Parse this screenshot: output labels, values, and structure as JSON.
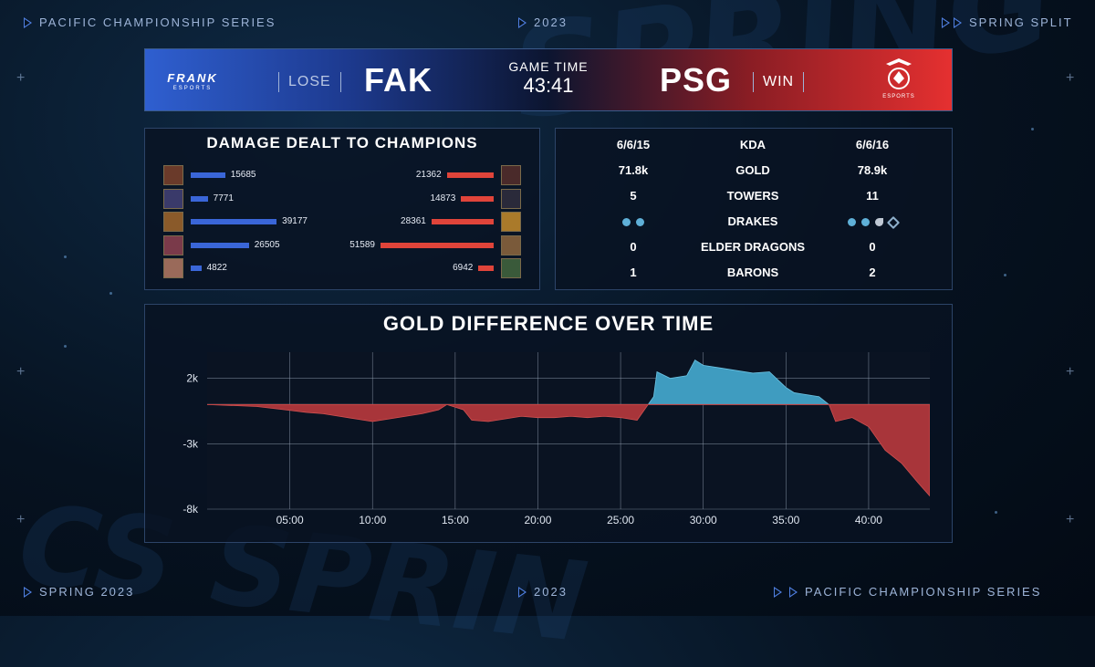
{
  "header": {
    "left": "PACIFIC CHAMPIONSHIP SERIES",
    "center": "2023",
    "right": "SPRING SPLIT"
  },
  "footer": {
    "left": "SPRING 2023",
    "center": "2023",
    "right": "PACIFIC CHAMPIONSHIP SERIES"
  },
  "background_words": [
    "SPRING",
    "CS SPRIN"
  ],
  "match": {
    "left_team": {
      "logo_text": "FRANK",
      "logo_sub": "ESPORTS",
      "result": "LOSE",
      "code": "FAK",
      "color": "#2f5fd0"
    },
    "right_team": {
      "logo_sub": "ESPORTS",
      "result": "WIN",
      "code": "PSG",
      "color": "#e53030"
    },
    "game_time_label": "GAME TIME",
    "game_time": "43:41"
  },
  "damage": {
    "title": "DAMAGE DEALT TO CHAMPIONS",
    "max": 51589,
    "left": [
      15685,
      7771,
      39177,
      26505,
      4822
    ],
    "right": [
      21362,
      14873,
      28361,
      51589,
      6942
    ]
  },
  "stats": {
    "rows": [
      {
        "label": "KDA",
        "left": "6/6/15",
        "right": "6/6/16"
      },
      {
        "label": "GOLD",
        "left": "71.8k",
        "right": "78.9k"
      },
      {
        "label": "TOWERS",
        "left": "5",
        "right": "11"
      },
      {
        "label": "DRAKES",
        "left_icons": [
          "ocean-drake-icon",
          "ocean-drake-icon"
        ],
        "right_icons": [
          "ocean-drake-icon",
          "ocean-drake-icon",
          "infernal-drake-icon",
          "cloud-drake-icon"
        ]
      },
      {
        "label": "ELDER DRAGONS",
        "left": "0",
        "right": "0"
      },
      {
        "label": "BARONS",
        "left": "1",
        "right": "2"
      }
    ]
  },
  "chart_data": {
    "type": "area",
    "title": "GOLD DIFFERENCE OVER TIME",
    "x_ticks": [
      "05:00",
      "10:00",
      "15:00",
      "20:00",
      "25:00",
      "30:00",
      "35:00",
      "40:00"
    ],
    "y_ticks": [
      "2k",
      "-3k",
      "-8k"
    ],
    "xlim": [
      0,
      43.7
    ],
    "ylim": [
      -8000,
      4000
    ],
    "colors": {
      "positive": "#3f9cc0",
      "negative": "#a8353a"
    },
    "series": [
      {
        "x": [
          0,
          1,
          2,
          3,
          4,
          5,
          6,
          7,
          8,
          9,
          10,
          11,
          12,
          13,
          14,
          14.5,
          15,
          15.5,
          16,
          17,
          18,
          19,
          20,
          21,
          22,
          23,
          24,
          25,
          26,
          27,
          27.2,
          28,
          29,
          29.5,
          30,
          31,
          32,
          33,
          34,
          35,
          35.5,
          36,
          37,
          37.6,
          38,
          39,
          40,
          41,
          42,
          43,
          43.7
        ],
        "values": [
          0,
          -50,
          -100,
          -150,
          -300,
          -450,
          -600,
          -700,
          -900,
          -1100,
          -1300,
          -1100,
          -900,
          -700,
          -400,
          0,
          -200,
          -400,
          -1200,
          -1300,
          -1100,
          -900,
          -1000,
          -1000,
          -900,
          -1000,
          -900,
          -1000,
          -1200,
          600,
          2500,
          2000,
          2200,
          3400,
          3000,
          2800,
          2600,
          2400,
          2500,
          1300,
          900,
          800,
          600,
          0,
          -1300,
          -1000,
          -1700,
          -3500,
          -4500,
          -6000,
          -7000
        ]
      }
    ]
  }
}
